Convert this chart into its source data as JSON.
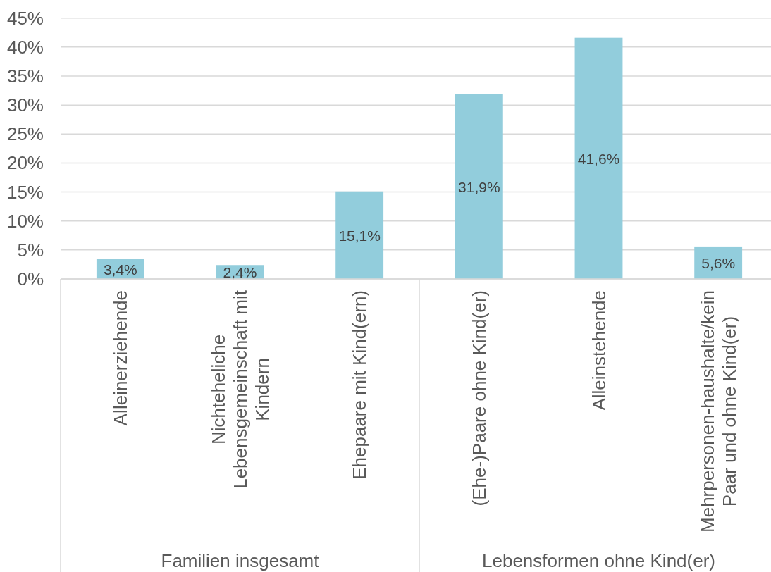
{
  "chart_data": {
    "type": "bar",
    "categories": [
      "Alleinerziehende",
      "Nichteheliche Lebensgemeinschaft mit Kindern",
      "Ehepaare mit Kind(ern)",
      "(Ehe-)Paare ohne Kind(er)",
      "Alleinstehende",
      "Mehrpersonen-haushalte/kein Paar und ohne Kind(er)"
    ],
    "values": [
      3.4,
      2.4,
      15.1,
      31.9,
      41.6,
      5.6
    ],
    "value_labels": [
      "3,4%",
      "2,4%",
      "15,1%",
      "31,9%",
      "41,6%",
      "5,6%"
    ],
    "color": "#92cddc",
    "ylim": [
      0,
      45
    ],
    "yticks": [
      {
        "value": 0,
        "label": "0%"
      },
      {
        "value": 5,
        "label": "5%"
      },
      {
        "value": 10,
        "label": "10%"
      },
      {
        "value": 15,
        "label": "15%"
      },
      {
        "value": 20,
        "label": "20%"
      },
      {
        "value": 25,
        "label": "25%"
      },
      {
        "value": 30,
        "label": "30%"
      },
      {
        "value": 35,
        "label": "35%"
      },
      {
        "value": 40,
        "label": "40%"
      },
      {
        "value": 45,
        "label": "45%"
      }
    ],
    "grid": "y",
    "annotations": [
      "Familien insgesamt",
      "Lebensformen ohne Kind(er)"
    ]
  }
}
